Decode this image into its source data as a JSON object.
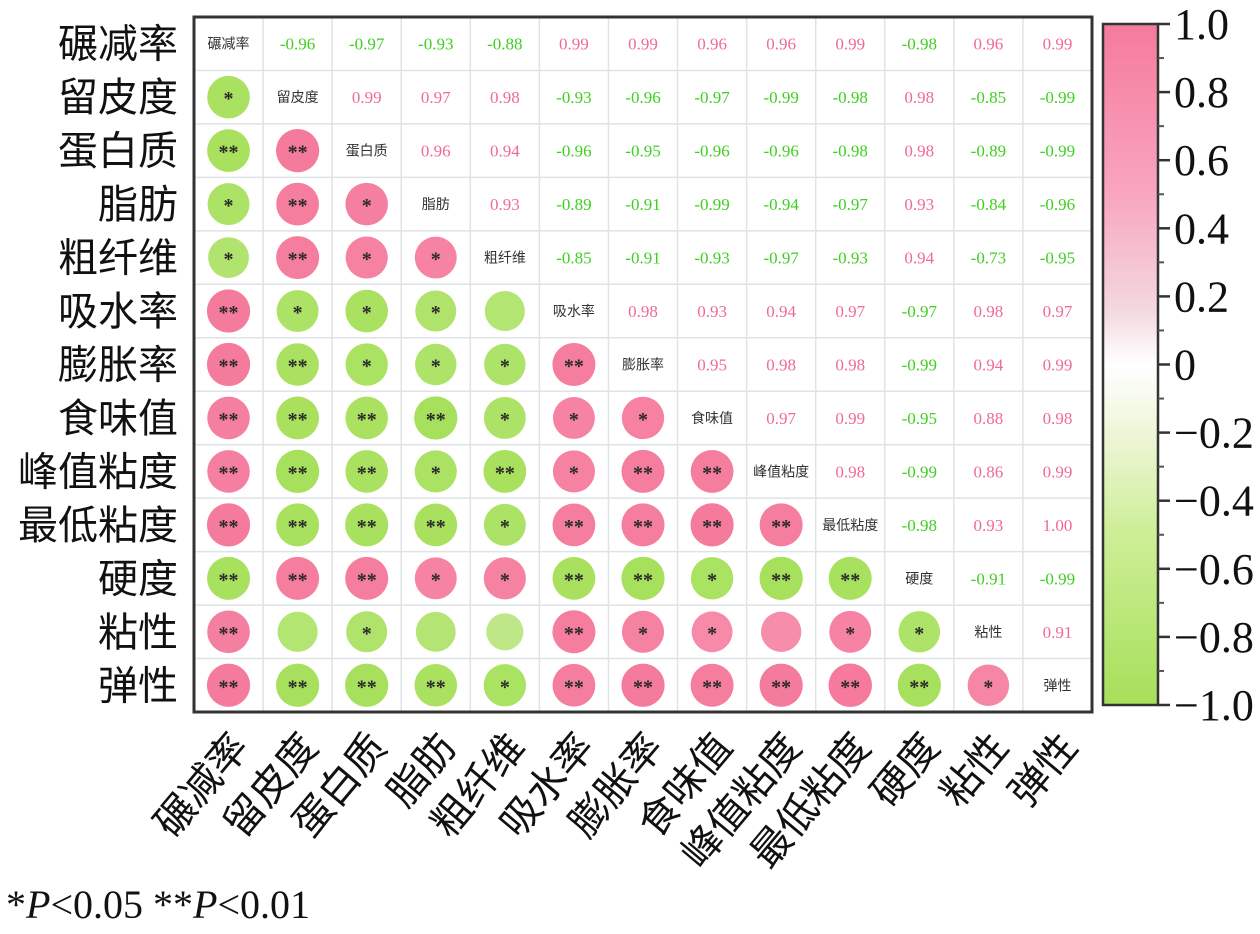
{
  "chart_data": {
    "type": "heatmap",
    "variables": [
      "碾减率",
      "留皮度",
      "蛋白质",
      "脂肪",
      "粗纤维",
      "吸水率",
      "膨胀率",
      "食味值",
      "峰值粘度",
      "最低粘度",
      "硬度",
      "粘性",
      "弹性"
    ],
    "upper_coefficients": [
      [
        null,
        "-0.96",
        "-0.97",
        "-0.93",
        "-0.88",
        "0.99",
        "0.99",
        "0.96",
        "0.96",
        "0.99",
        "-0.98",
        "0.96",
        "0.99"
      ],
      [
        null,
        null,
        "0.99",
        "0.97",
        "0.98",
        "-0.93",
        "-0.96",
        "-0.97",
        "-0.99",
        "-0.98",
        "0.98",
        "-0.85",
        "-0.99"
      ],
      [
        null,
        null,
        null,
        "0.96",
        "0.94",
        "-0.96",
        "-0.95",
        "-0.96",
        "-0.96",
        "-0.98",
        "0.98",
        "-0.89",
        "-0.99"
      ],
      [
        null,
        null,
        null,
        null,
        "0.93",
        "-0.89",
        "-0.91",
        "-0.99",
        "-0.94",
        "-0.97",
        "0.93",
        "-0.84",
        "-0.96"
      ],
      [
        null,
        null,
        null,
        null,
        null,
        "-0.85",
        "-0.91",
        "-0.93",
        "-0.97",
        "-0.93",
        "0.94",
        "-0.73",
        "-0.95"
      ],
      [
        null,
        null,
        null,
        null,
        null,
        null,
        "0.98",
        "0.93",
        "0.94",
        "0.97",
        "-0.97",
        "0.98",
        "0.97"
      ],
      [
        null,
        null,
        null,
        null,
        null,
        null,
        null,
        "0.95",
        "0.98",
        "0.98",
        "-0.99",
        "0.94",
        "0.99"
      ],
      [
        null,
        null,
        null,
        null,
        null,
        null,
        null,
        null,
        "0.97",
        "0.99",
        "-0.95",
        "0.88",
        "0.98"
      ],
      [
        null,
        null,
        null,
        null,
        null,
        null,
        null,
        null,
        null,
        "0.98",
        "-0.99",
        "0.86",
        "0.99"
      ],
      [
        null,
        null,
        null,
        null,
        null,
        null,
        null,
        null,
        null,
        null,
        "-0.98",
        "0.93",
        "1.00"
      ],
      [
        null,
        null,
        null,
        null,
        null,
        null,
        null,
        null,
        null,
        null,
        null,
        "-0.91",
        "-0.99"
      ],
      [
        null,
        null,
        null,
        null,
        null,
        null,
        null,
        null,
        null,
        null,
        null,
        null,
        "0.91"
      ],
      [
        null,
        null,
        null,
        null,
        null,
        null,
        null,
        null,
        null,
        null,
        null,
        null,
        null
      ]
    ],
    "lower_significance": [
      [],
      [
        "*"
      ],
      [
        "**",
        "**"
      ],
      [
        "*",
        "**",
        "*"
      ],
      [
        "*",
        "**",
        "*",
        "*"
      ],
      [
        "**",
        "*",
        "*",
        "*",
        ""
      ],
      [
        "**",
        "**",
        "*",
        "*",
        "*",
        "**"
      ],
      [
        "**",
        "**",
        "**",
        "**",
        "*",
        "*",
        "*"
      ],
      [
        "**",
        "**",
        "**",
        "*",
        "**",
        "*",
        "**",
        "**"
      ],
      [
        "**",
        "**",
        "**",
        "**",
        "*",
        "**",
        "**",
        "**",
        "**"
      ],
      [
        "**",
        "**",
        "**",
        "*",
        "*",
        "**",
        "**",
        "*",
        "**",
        "**"
      ],
      [
        "**",
        "",
        "*",
        "",
        "",
        "**",
        "*",
        "*",
        "",
        "*",
        "*"
      ],
      [
        "**",
        "**",
        "**",
        "**",
        "*",
        "**",
        "**",
        "**",
        "**",
        "**",
        "**",
        "*"
      ]
    ],
    "colorbar": {
      "range": [
        -1.0,
        1.0
      ],
      "tick_labels": [
        "1.0",
        "0.8",
        "0.6",
        "0.4",
        "0.2",
        "0",
        "−0.2",
        "−0.4",
        "−0.6",
        "−0.8",
        "−1.0"
      ],
      "positive_color": "#f57a9c",
      "negative_color": "#a6e05a",
      "zero_color": "#ffffff"
    },
    "colors": {
      "positive_text": "#f06a93",
      "negative_text": "#3fcf20",
      "grid": "#dfe3e6",
      "border": "#333333"
    }
  },
  "footnote": {
    "star1": "*",
    "p1": "P",
    "cond1": "<0.05 ",
    "star2": "**",
    "p2": "P",
    "cond2": "<0.01"
  }
}
